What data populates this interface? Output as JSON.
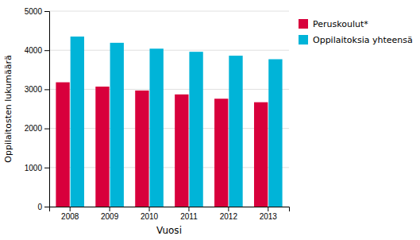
{
  "chart_data": {
    "type": "bar",
    "xlabel": "Vuosi",
    "ylabel": "Oppilaitosten lukumäärä",
    "categories": [
      "2008",
      "2009",
      "2010",
      "2011",
      "2012",
      "2013"
    ],
    "series": [
      {
        "name": "Peruskoulut*",
        "color": "#d8003c",
        "values": [
          3180,
          3070,
          2970,
          2870,
          2760,
          2670
        ]
      },
      {
        "name": "Oppilaitoksia yhteensä",
        "color": "#00b4d8",
        "values": [
          4350,
          4190,
          4040,
          3960,
          3860,
          3770
        ]
      }
    ],
    "ylim": [
      0,
      5000
    ],
    "yticks": [
      0,
      1000,
      2000,
      3000,
      4000,
      5000
    ],
    "grid": true,
    "legend": "right"
  }
}
